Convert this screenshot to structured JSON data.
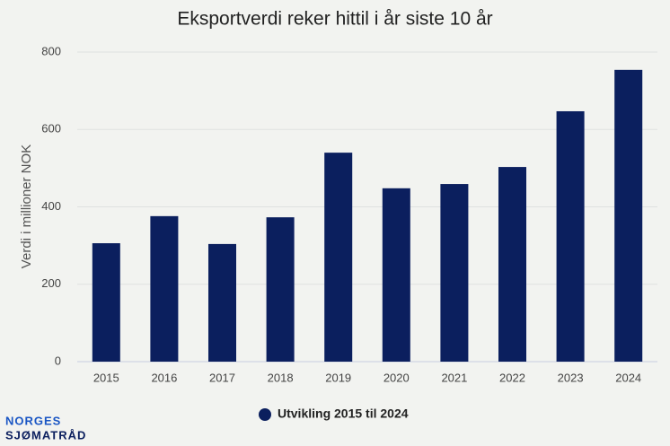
{
  "chart_data": {
    "type": "bar",
    "title": "Eksportverdi reker hittil i år siste 10 år",
    "y_label": "Verdi i millioner NOK",
    "categories": [
      "2015",
      "2016",
      "2017",
      "2018",
      "2019",
      "2020",
      "2021",
      "2022",
      "2023",
      "2024"
    ],
    "series": [
      {
        "name": "Utvikling 2015 til 2024",
        "color": "#0b1f5e",
        "values": [
          306,
          376,
          304,
          373,
          540,
          448,
          459,
          503,
          647,
          754
        ]
      }
    ],
    "ylim": [
      0,
      800
    ],
    "yticks": [
      0,
      200,
      400,
      600,
      800
    ],
    "grid": true,
    "legend": "bottom"
  },
  "logo": [
    "NORGES",
    "SJØMATRÅD"
  ]
}
